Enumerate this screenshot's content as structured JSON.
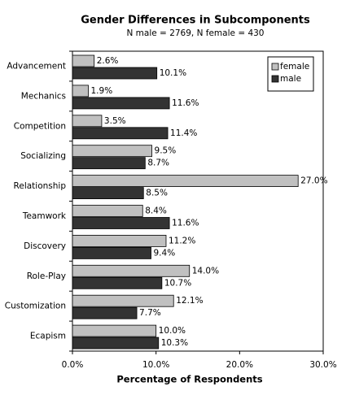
{
  "chart_data": {
    "type": "hbar",
    "title": "Gender Differences in Subcomponents",
    "subtitle": "N male = 2769, N female = 430",
    "x_label": "Percentage of Respondents",
    "categories": [
      "Advancement",
      "Mechanics",
      "Competition",
      "Socializing",
      "Relationship",
      "Teamwork",
      "Discovery",
      "Role-Play",
      "Customization",
      "Ecapism"
    ],
    "series": [
      {
        "name": "female",
        "color": "#c0c0c0",
        "values": [
          2.6,
          1.9,
          3.5,
          9.5,
          27.0,
          8.4,
          11.2,
          14.0,
          12.1,
          10.0
        ],
        "value_labels": [
          "2.6%",
          "1.9%",
          "3.5%",
          "9.5%",
          "27.0%",
          "8.4%",
          "11.2%",
          "14.0%",
          "12.1%",
          "10.0%"
        ]
      },
      {
        "name": "male",
        "color": "#333333",
        "values": [
          10.1,
          11.6,
          11.4,
          8.7,
          8.5,
          11.6,
          9.4,
          10.7,
          7.7,
          10.3
        ],
        "value_labels": [
          "10.1%",
          "11.6%",
          "11.4%",
          "8.7%",
          "8.5%",
          "11.6%",
          "9.4%",
          "10.7%",
          "7.7%",
          "10.3%"
        ]
      }
    ],
    "xlim": [
      0,
      30
    ],
    "xticks": [
      {
        "value": 0,
        "label": "0.0%"
      },
      {
        "value": 10,
        "label": "10.0%"
      },
      {
        "value": 20,
        "label": "20.0%"
      },
      {
        "value": 30,
        "label": "30.0%"
      }
    ],
    "legend": "upper right"
  }
}
